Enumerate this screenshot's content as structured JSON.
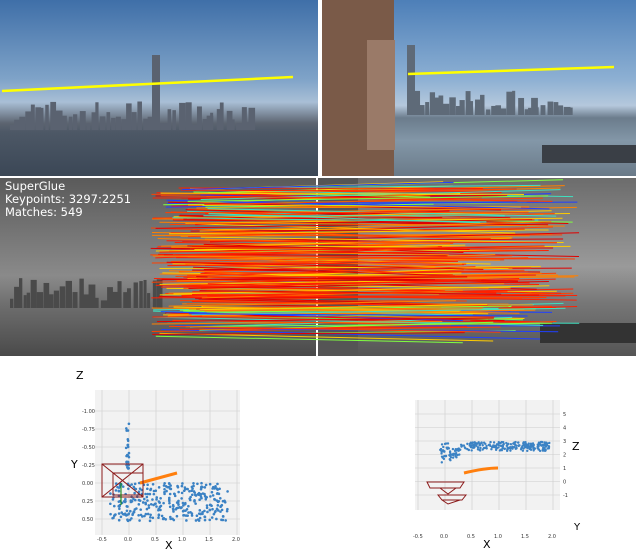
{
  "overlay": {
    "method": "SuperGlue",
    "keypoints": "Keypoints: 3297:2251",
    "matches": "Matches: 549"
  },
  "plot_left": {
    "axis_x": "X",
    "axis_y": "Y",
    "axis_z": "Z",
    "x_ticks": [
      "-0.5",
      "0.0",
      "0.5",
      "1.0",
      "1.5",
      "2.0"
    ],
    "y_ticks": [
      "-1.00",
      "-0.75",
      "-0.50",
      "-0.25",
      "0.00",
      "0.25",
      "0.50"
    ]
  },
  "plot_right": {
    "axis_x": "X",
    "axis_y": "Y",
    "axis_z": "Z",
    "x_ticks": [
      "-0.5",
      "0.0",
      "0.5",
      "1.0",
      "1.5",
      "2.0"
    ],
    "z_ticks": [
      "5",
      "4",
      "3",
      "2",
      "1",
      "0",
      "-1"
    ]
  },
  "colors": {
    "points": "#3b82c4",
    "trajectory": "#ff7f0e",
    "camera": "#8b1a1a",
    "horizon_line": "#ffff00"
  }
}
